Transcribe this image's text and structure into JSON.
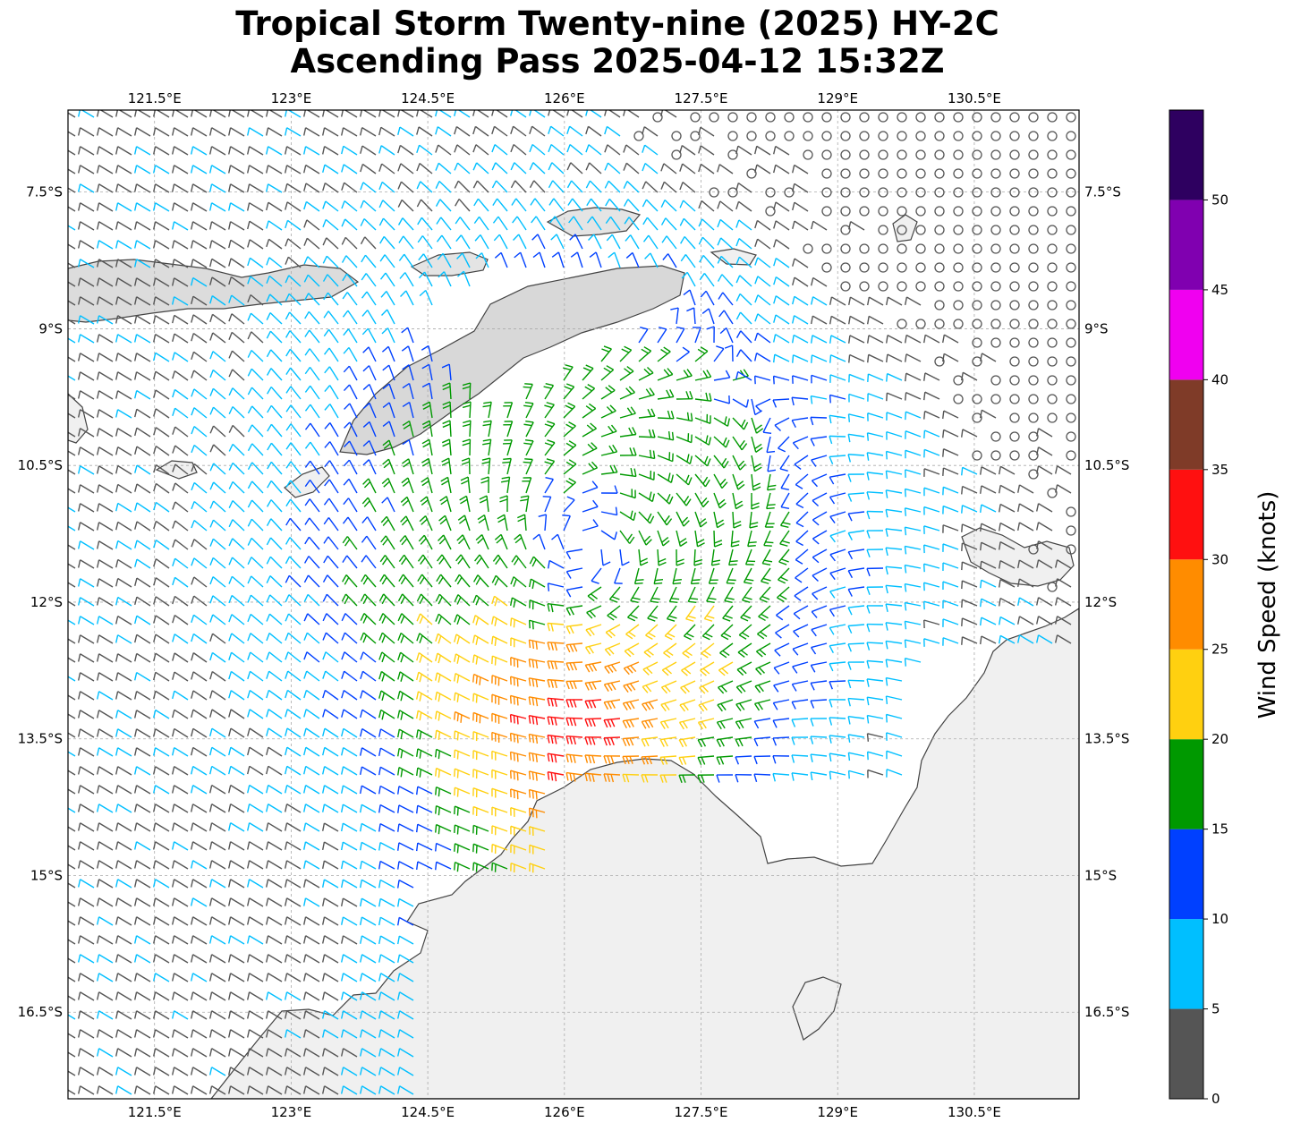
{
  "title": {
    "line1": "Tropical Storm Twenty-nine (2025) HY-2C",
    "line2": "Ascending Pass 2025-04-12 15:32Z"
  },
  "map": {
    "lon_range": [
      120.55,
      131.65
    ],
    "lat_range": [
      -17.45,
      -6.6
    ],
    "lon_ticks": [
      {
        "value": 121.5,
        "label": "121.5°E"
      },
      {
        "value": 123.0,
        "label": "123°E"
      },
      {
        "value": 124.5,
        "label": "124.5°E"
      },
      {
        "value": 126.0,
        "label": "126°E"
      },
      {
        "value": 127.5,
        "label": "127.5°E"
      },
      {
        "value": 129.0,
        "label": "129°E"
      },
      {
        "value": 130.5,
        "label": "130.5°E"
      }
    ],
    "lat_ticks": [
      {
        "value": -7.5,
        "label": "7.5°S"
      },
      {
        "value": -9.0,
        "label": "9°S"
      },
      {
        "value": -10.5,
        "label": "10.5°S"
      },
      {
        "value": -12.0,
        "label": "12°S"
      },
      {
        "value": -13.5,
        "label": "13.5°S"
      },
      {
        "value": -15.0,
        "label": "15°S"
      },
      {
        "value": -16.5,
        "label": "16.5°S"
      }
    ],
    "gridlines": true,
    "storm_center": {
      "lon": 126.2,
      "lat": -11.4
    },
    "land_color": "#f0f0f0",
    "coast_color": "#444444"
  },
  "colorbar": {
    "title": "Wind Speed (knots)",
    "range": [
      0,
      55
    ],
    "bins": [
      {
        "from": 0,
        "to": 5,
        "color": "#555555"
      },
      {
        "from": 5,
        "to": 10,
        "color": "#00bfff"
      },
      {
        "from": 10,
        "to": 15,
        "color": "#0040ff"
      },
      {
        "from": 15,
        "to": 20,
        "color": "#009900"
      },
      {
        "from": 20,
        "to": 25,
        "color": "#ffd010"
      },
      {
        "from": 25,
        "to": 30,
        "color": "#ff8c00"
      },
      {
        "from": 30,
        "to": 35,
        "color": "#ff1010"
      },
      {
        "from": 35,
        "to": 40,
        "color": "#7f3b28"
      },
      {
        "from": 40,
        "to": 45,
        "color": "#f000f0"
      },
      {
        "from": 45,
        "to": 50,
        "color": "#8000b0"
      },
      {
        "from": 50,
        "to": 55,
        "color": "#2e0060"
      }
    ],
    "ticks": [
      "0",
      "5",
      "10",
      "15",
      "20",
      "25",
      "30",
      "35",
      "40",
      "45",
      "50"
    ]
  }
}
